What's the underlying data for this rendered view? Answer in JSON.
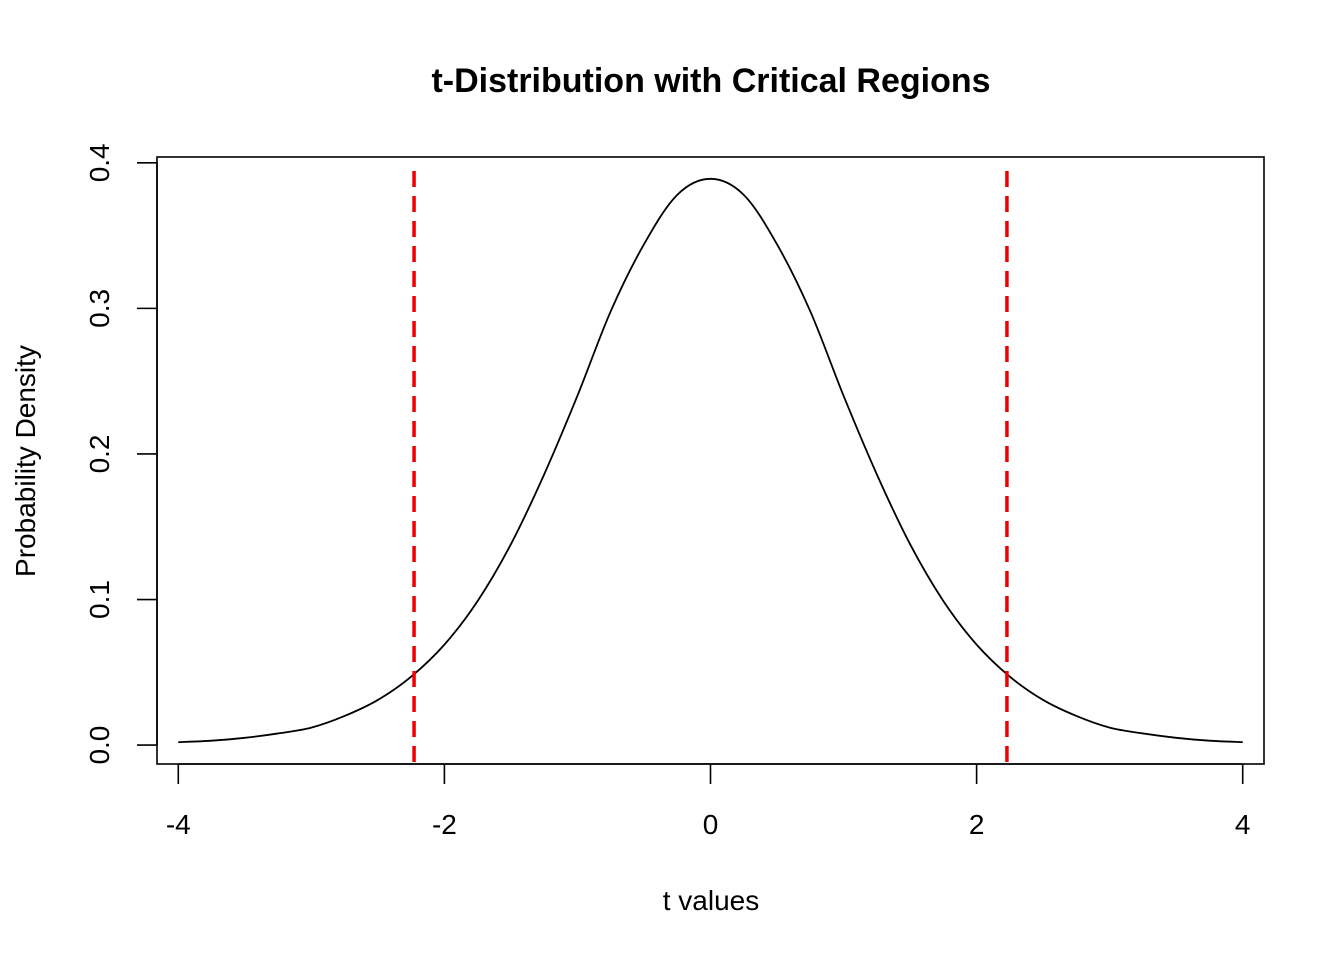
{
  "chart_data": {
    "type": "line",
    "title": "t-Distribution with Critical Regions",
    "xlabel": "t values",
    "ylabel": "Probability Density",
    "xlim": [
      -4.16,
      4.16
    ],
    "ylim": [
      -0.013,
      0.404
    ],
    "x_ticks": [
      -4,
      -2,
      0,
      2,
      4
    ],
    "x_tick_labels": [
      "-4",
      "-2",
      "0",
      "2",
      "4"
    ],
    "y_ticks": [
      0.0,
      0.1,
      0.2,
      0.3,
      0.4
    ],
    "y_tick_labels": [
      "0.0",
      "0.1",
      "0.2",
      "0.3",
      "0.4"
    ],
    "grid": false,
    "series": [
      {
        "color": "#000000",
        "x": [
          -4,
          -3.75,
          -3.5,
          -3.25,
          -3,
          -2.75,
          -2.5,
          -2.25,
          -2,
          -1.75,
          -1.5,
          -1.25,
          -1,
          -0.75,
          -0.5,
          -0.25,
          0,
          0.25,
          0.5,
          0.75,
          1,
          1.25,
          1.5,
          1.75,
          2,
          2.25,
          2.5,
          2.75,
          3,
          3.25,
          3.5,
          3.75,
          4
        ],
        "y": [
          0.002,
          0.003,
          0.005,
          0.008,
          0.012,
          0.02,
          0.031,
          0.047,
          0.069,
          0.099,
          0.138,
          0.186,
          0.24,
          0.298,
          0.344,
          0.378,
          0.389,
          0.378,
          0.344,
          0.298,
          0.24,
          0.186,
          0.138,
          0.099,
          0.069,
          0.047,
          0.031,
          0.02,
          0.012,
          0.008,
          0.005,
          0.003,
          0.002
        ]
      }
    ],
    "critical_lines": {
      "color": "#ee0000",
      "style": "dashed",
      "x": [
        -2.228,
        2.228
      ]
    }
  }
}
